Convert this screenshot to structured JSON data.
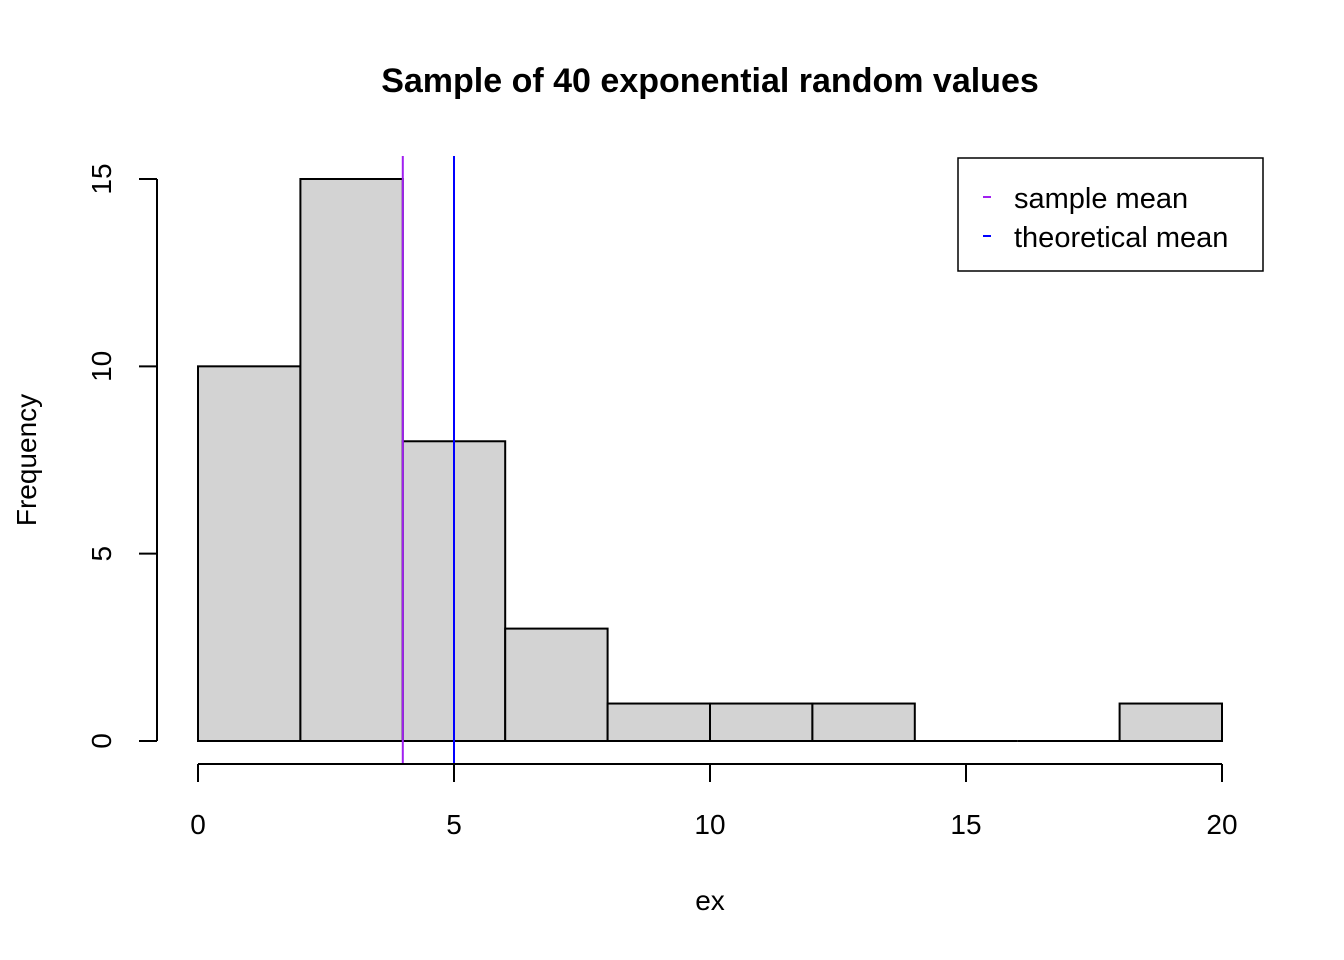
{
  "chart_data": {
    "type": "histogram",
    "title": "Sample of 40 exponential random values",
    "xlabel": "ex",
    "ylabel": "Frequency",
    "xlim": [
      0,
      20
    ],
    "ylim": [
      0,
      15
    ],
    "x_ticks": [
      "0",
      "5",
      "10",
      "15",
      "20"
    ],
    "y_ticks": [
      "0",
      "5",
      "10",
      "15"
    ],
    "bins": [
      {
        "start": 0,
        "end": 2,
        "count": 10
      },
      {
        "start": 2,
        "end": 4,
        "count": 15
      },
      {
        "start": 4,
        "end": 6,
        "count": 8
      },
      {
        "start": 6,
        "end": 8,
        "count": 3
      },
      {
        "start": 8,
        "end": 10,
        "count": 1
      },
      {
        "start": 10,
        "end": 12,
        "count": 1
      },
      {
        "start": 12,
        "end": 14,
        "count": 1
      },
      {
        "start": 14,
        "end": 16,
        "count": 0
      },
      {
        "start": 16,
        "end": 18,
        "count": 0
      },
      {
        "start": 18,
        "end": 20,
        "count": 1
      }
    ],
    "bar_fill": "#d3d3d3",
    "grid": false,
    "reference_lines": [
      {
        "name": "sample mean",
        "x": 4.0,
        "color": "#a020f0"
      },
      {
        "name": "theoretical mean",
        "x": 5,
        "color": "#0000ff"
      }
    ],
    "legend": {
      "position": "top-right",
      "entries": [
        "sample mean",
        "theoretical mean"
      ]
    }
  }
}
